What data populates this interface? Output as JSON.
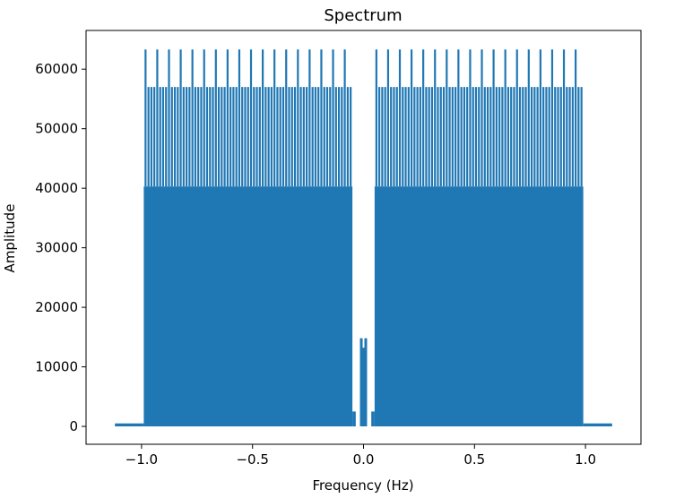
{
  "chart_data": {
    "type": "line",
    "title": "Spectrum",
    "xlabel": "Frequency (Hz)",
    "ylabel": "Amplitude",
    "xlim": [
      -1.25,
      1.25
    ],
    "ylim": [
      -3000,
      66500
    ],
    "x_ticks": [
      -1.0,
      -0.5,
      0.0,
      0.5,
      1.0
    ],
    "x_tick_labels": [
      "−1.0",
      "−0.5",
      "0.0",
      "0.5",
      "1.0"
    ],
    "y_ticks": [
      0,
      10000,
      20000,
      30000,
      40000,
      50000,
      60000
    ],
    "y_tick_labels": [
      "0",
      "10000",
      "20000",
      "30000",
      "40000",
      "50000",
      "60000"
    ],
    "grid": false,
    "series": [
      {
        "color": "#1f77b4",
        "regions": [
          {
            "x": [
              -1.12,
              -0.99
            ],
            "amplitude": 500
          },
          {
            "x": [
              -0.99,
              -0.05
            ],
            "amplitude": 40300
          },
          {
            "x": [
              -0.05,
              -0.035
            ],
            "amplitude": 2500
          },
          {
            "x": [
              0.035,
              0.05
            ],
            "amplitude": 2500
          },
          {
            "x": [
              0.05,
              0.99
            ],
            "amplitude": 40300
          },
          {
            "x": [
              0.99,
              1.12
            ],
            "amplitude": 500
          }
        ],
        "peak_spacing": 0.0264,
        "peak_levels": [
          57000,
          63300
        ],
        "center_peaks": [
          {
            "x": -0.01,
            "y": 14800
          },
          {
            "x": 0.0,
            "y": 13200
          },
          {
            "x": 0.01,
            "y": 14800
          }
        ]
      }
    ]
  }
}
